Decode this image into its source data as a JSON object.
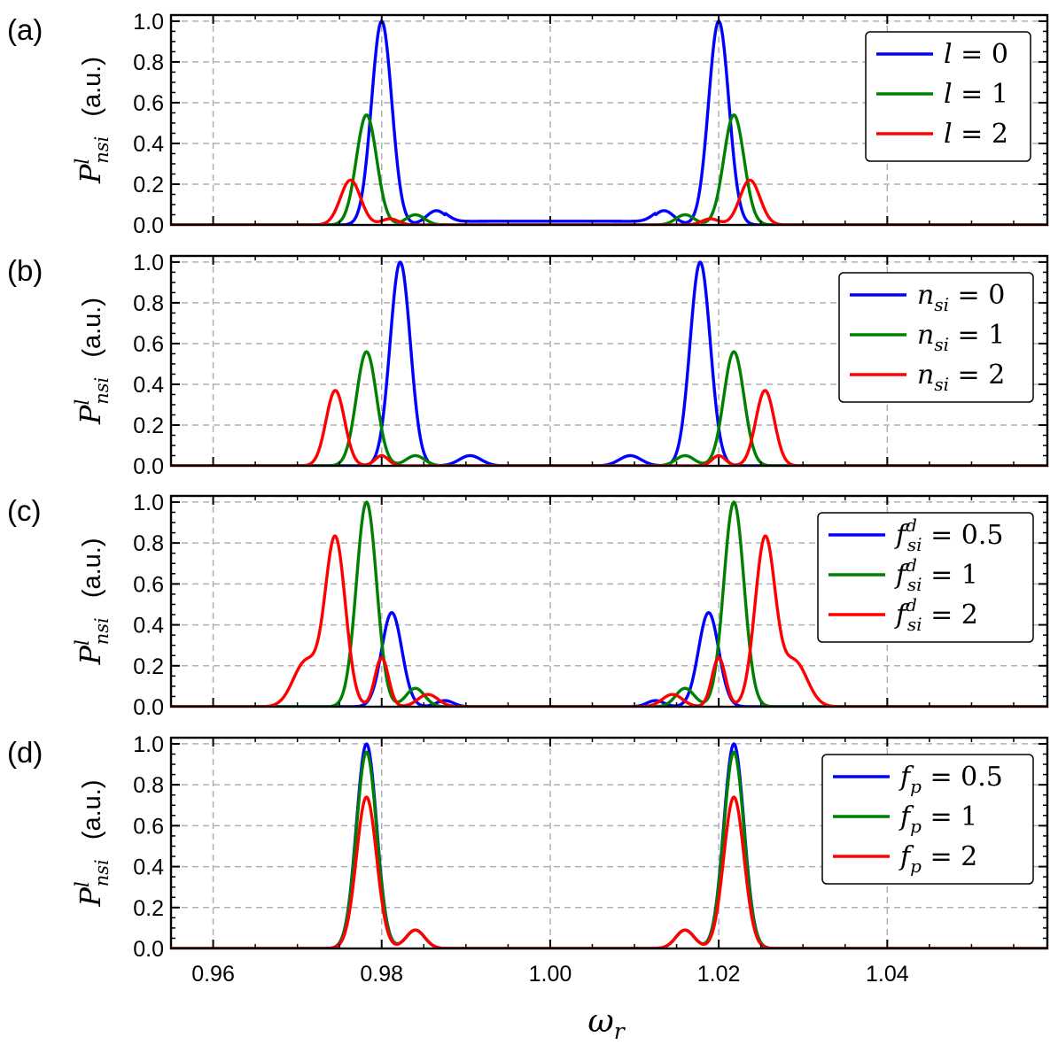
{
  "chart_data": [
    {
      "type": "line",
      "panel_label": "(a)",
      "xlabel": "ω_r",
      "ylabel": {
        "symbol": "P",
        "superscript": "l",
        "subscript": "n_si",
        "units": "(a.u.)"
      },
      "xlim": [
        0.955,
        1.059
      ],
      "ylim": [
        0.0,
        1.03
      ],
      "yticks": [
        "0.0",
        "0.2",
        "0.4",
        "0.6",
        "0.8",
        "1.0"
      ],
      "grid": true,
      "legend_position": "top-right",
      "series": [
        {
          "name": "l = 0",
          "legend": {
            "sym": "l",
            "sup": "",
            "sub": "",
            "val": "= 0"
          },
          "color": "#0000ff",
          "peaks": [
            [
              0.98,
              1.0,
              0.0012
            ],
            [
              1.02,
              1.0,
              0.0012
            ],
            [
              0.9865,
              0.07,
              0.0012
            ],
            [
              1.0135,
              0.07,
              0.0012
            ]
          ],
          "plateau": {
            "from": 0.9875,
            "to": 1.0125,
            "value": 0.018
          }
        },
        {
          "name": "l = 1",
          "legend": {
            "sym": "l",
            "sup": "",
            "sub": "",
            "val": "= 1"
          },
          "color": "#008000",
          "peaks": [
            [
              0.9782,
              0.54,
              0.0012
            ],
            [
              1.0218,
              0.54,
              0.0012
            ],
            [
              0.984,
              0.05,
              0.0011
            ],
            [
              1.016,
              0.05,
              0.0011
            ]
          ]
        },
        {
          "name": "l = 2",
          "legend": {
            "sym": "l",
            "sup": "",
            "sub": "",
            "val": "= 2"
          },
          "color": "#ff0000",
          "peaks": [
            [
              0.9763,
              0.22,
              0.0012
            ],
            [
              1.0237,
              0.22,
              0.0012
            ],
            [
              0.981,
              0.03,
              0.001
            ],
            [
              1.019,
              0.03,
              0.001
            ]
          ]
        }
      ]
    },
    {
      "type": "line",
      "panel_label": "(b)",
      "xlabel": "ω_r",
      "ylabel": {
        "symbol": "P",
        "superscript": "l",
        "subscript": "n_si",
        "units": "(a.u.)"
      },
      "xlim": [
        0.955,
        1.059
      ],
      "ylim": [
        0.0,
        1.03
      ],
      "yticks": [
        "0.0",
        "0.2",
        "0.4",
        "0.6",
        "0.8",
        "1.0"
      ],
      "grid": true,
      "legend_position": "top-right",
      "series": [
        {
          "name": "n_si = 0",
          "legend": {
            "sym": "n",
            "sup": "",
            "sub": "si",
            "val": "= 0"
          },
          "color": "#0000ff",
          "peaks": [
            [
              0.9822,
              1.0,
              0.0012
            ],
            [
              1.0178,
              1.0,
              0.0012
            ],
            [
              0.9905,
              0.05,
              0.0013
            ],
            [
              1.0095,
              0.05,
              0.0013
            ]
          ]
        },
        {
          "name": "n_si = 1",
          "legend": {
            "sym": "n",
            "sup": "",
            "sub": "si",
            "val": "= 1"
          },
          "color": "#008000",
          "peaks": [
            [
              0.9782,
              0.56,
              0.0012
            ],
            [
              1.0218,
              0.56,
              0.0012
            ],
            [
              0.984,
              0.05,
              0.0011
            ],
            [
              1.016,
              0.05,
              0.0011
            ]
          ]
        },
        {
          "name": "n_si = 2",
          "legend": {
            "sym": "n",
            "sup": "",
            "sub": "si",
            "val": "= 2"
          },
          "color": "#ff0000",
          "peaks": [
            [
              0.9745,
              0.37,
              0.0011
            ],
            [
              1.0255,
              0.37,
              0.0011
            ],
            [
              0.98,
              0.05,
              0.0008
            ],
            [
              1.02,
              0.05,
              0.0008
            ]
          ]
        }
      ]
    },
    {
      "type": "line",
      "panel_label": "(c)",
      "xlabel": "ω_r",
      "ylabel": {
        "symbol": "P",
        "superscript": "l",
        "subscript": "n_si",
        "units": "(a.u.)"
      },
      "xlim": [
        0.955,
        1.059
      ],
      "ylim": [
        0.0,
        1.03
      ],
      "yticks": [
        "0.0",
        "0.2",
        "0.4",
        "0.6",
        "0.8",
        "1.0"
      ],
      "grid": true,
      "legend_position": "top-right",
      "series": [
        {
          "name": "f_si^d = 0.5",
          "legend": {
            "sym": "f",
            "sup": "d",
            "sub": "si",
            "val": "= 0.5"
          },
          "color": "#0000ff",
          "peaks": [
            [
              0.9812,
              0.46,
              0.0012
            ],
            [
              1.0188,
              0.46,
              0.0012
            ],
            [
              0.9875,
              0.03,
              0.001
            ],
            [
              1.0125,
              0.03,
              0.001
            ]
          ]
        },
        {
          "name": "f_si^d = 1",
          "legend": {
            "sym": "f",
            "sup": "d",
            "sub": "si",
            "val": "= 1"
          },
          "color": "#008000",
          "peaks": [
            [
              0.9782,
              1.0,
              0.0012
            ],
            [
              1.0218,
              1.0,
              0.0012
            ],
            [
              0.984,
              0.09,
              0.0011
            ],
            [
              1.016,
              0.09,
              0.0011
            ]
          ]
        },
        {
          "name": "f_si^d = 2",
          "legend": {
            "sym": "f",
            "sup": "d",
            "sub": "si",
            "val": "= 2"
          },
          "color": "#ff0000",
          "peaks": [
            [
              0.9745,
              0.82,
              0.0012
            ],
            [
              1.0255,
              0.82,
              0.0012
            ],
            [
              0.971,
              0.22,
              0.0015
            ],
            [
              1.029,
              0.22,
              0.0015
            ],
            [
              0.98,
              0.24,
              0.0008
            ],
            [
              1.02,
              0.24,
              0.0008
            ],
            [
              0.9855,
              0.06,
              0.0012
            ],
            [
              1.0145,
              0.06,
              0.0012
            ]
          ]
        }
      ]
    },
    {
      "type": "line",
      "panel_label": "(d)",
      "xlabel": "ω_r",
      "ylabel": {
        "symbol": "P",
        "superscript": "l",
        "subscript": "n_si",
        "units": "(a.u.)"
      },
      "xlim": [
        0.955,
        1.059
      ],
      "ylim": [
        0.0,
        1.03
      ],
      "yticks": [
        "0.0",
        "0.2",
        "0.4",
        "0.6",
        "0.8",
        "1.0"
      ],
      "xticks": [
        "0.96",
        "0.98",
        "1.00",
        "1.02",
        "1.04"
      ],
      "grid": true,
      "legend_position": "top-right",
      "series": [
        {
          "name": "f_p = 0.5",
          "legend": {
            "sym": "f",
            "sup": "",
            "sub": "p",
            "val": "= 0.5"
          },
          "color": "#0000ff",
          "peaks": [
            [
              0.9782,
              1.0,
              0.0012
            ],
            [
              1.0218,
              1.0,
              0.0012
            ],
            [
              0.984,
              0.09,
              0.0011
            ],
            [
              1.016,
              0.09,
              0.0011
            ]
          ]
        },
        {
          "name": "f_p = 1",
          "legend": {
            "sym": "f",
            "sup": "",
            "sub": "p",
            "val": "= 1"
          },
          "color": "#008000",
          "peaks": [
            [
              0.9782,
              0.96,
              0.0012
            ],
            [
              1.0218,
              0.96,
              0.0012
            ],
            [
              0.984,
              0.09,
              0.0011
            ],
            [
              1.016,
              0.09,
              0.0011
            ]
          ]
        },
        {
          "name": "f_p = 2",
          "legend": {
            "sym": "f",
            "sup": "",
            "sub": "p",
            "val": "= 2"
          },
          "color": "#ff0000",
          "peaks": [
            [
              0.9782,
              0.74,
              0.0012
            ],
            [
              1.0218,
              0.74,
              0.0012
            ],
            [
              0.984,
              0.09,
              0.0011
            ],
            [
              1.016,
              0.09,
              0.0011
            ]
          ]
        }
      ]
    }
  ],
  "x_axis": {
    "label_symbol": "ω",
    "label_subscript": "r",
    "ticks": [
      "0.96",
      "0.98",
      "1.00",
      "1.02",
      "1.04"
    ],
    "tick_values": [
      0.96,
      0.98,
      1.0,
      1.02,
      1.04
    ]
  }
}
